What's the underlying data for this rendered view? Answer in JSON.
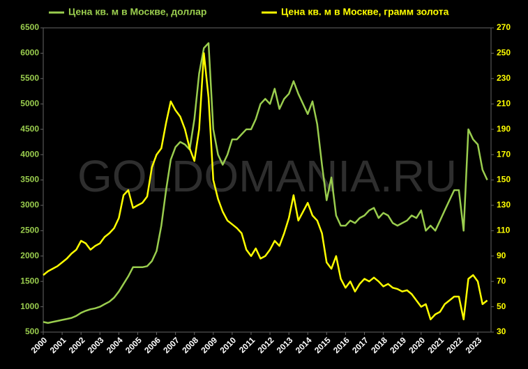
{
  "chart_data": {
    "type": "line",
    "watermark": "GOLDOMANIA.RU",
    "x": [
      2000,
      2000.25,
      2000.5,
      2000.75,
      2001,
      2001.25,
      2001.5,
      2001.75,
      2002,
      2002.25,
      2002.5,
      2002.75,
      2003,
      2003.25,
      2003.5,
      2003.75,
      2004,
      2004.25,
      2004.5,
      2004.75,
      2005,
      2005.25,
      2005.5,
      2005.75,
      2006,
      2006.25,
      2006.5,
      2006.75,
      2007,
      2007.25,
      2007.5,
      2007.75,
      2008,
      2008.25,
      2008.5,
      2008.75,
      2009,
      2009.25,
      2009.5,
      2009.75,
      2010,
      2010.25,
      2010.5,
      2010.75,
      2011,
      2011.25,
      2011.5,
      2011.75,
      2012,
      2012.25,
      2012.5,
      2012.75,
      2013,
      2013.25,
      2013.5,
      2013.75,
      2014,
      2014.25,
      2014.5,
      2014.75,
      2015,
      2015.25,
      2015.5,
      2015.75,
      2016,
      2016.25,
      2016.5,
      2016.75,
      2017,
      2017.25,
      2017.5,
      2017.75,
      2018,
      2018.25,
      2018.5,
      2018.75,
      2019,
      2019.25,
      2019.5,
      2019.75,
      2020,
      2020.25,
      2020.5,
      2020.75,
      2021,
      2021.25,
      2021.5,
      2021.75,
      2022,
      2022.25,
      2022.5,
      2022.75,
      2023,
      2023.25,
      2023.5
    ],
    "series": [
      {
        "name": "Цена кв. м в Москве, доллар",
        "color": "#9acd4e",
        "axis": "y",
        "values": [
          700,
          680,
          700,
          720,
          740,
          760,
          780,
          820,
          880,
          920,
          950,
          970,
          1000,
          1050,
          1100,
          1180,
          1300,
          1450,
          1600,
          1780,
          1780,
          1780,
          1800,
          1900,
          2100,
          2600,
          3300,
          3900,
          4150,
          4250,
          4200,
          4100,
          4700,
          5600,
          6100,
          6200,
          4500,
          4000,
          3800,
          4000,
          4300,
          4300,
          4400,
          4500,
          4500,
          4700,
          5000,
          5100,
          5000,
          5300,
          4900,
          5100,
          5200,
          5450,
          5200,
          5000,
          4800,
          5050,
          4600,
          3800,
          3100,
          3550,
          2800,
          2600,
          2600,
          2700,
          2650,
          2750,
          2800,
          2900,
          2950,
          2750,
          2850,
          2800,
          2650,
          2600,
          2650,
          2700,
          2800,
          2750,
          2900,
          2500,
          2600,
          2500,
          2700,
          2900,
          3100,
          3300,
          3300,
          2500,
          4500,
          4300,
          4200,
          3700,
          3500
        ]
      },
      {
        "name": "Цена кв. м в Москве, грамм золота",
        "color": "#ffff00",
        "axis": "y2",
        "values": [
          75,
          78,
          80,
          82,
          85,
          88,
          92,
          95,
          102,
          100,
          95,
          98,
          100,
          105,
          108,
          112,
          120,
          138,
          142,
          128,
          130,
          132,
          137,
          160,
          170,
          175,
          195,
          212,
          205,
          200,
          190,
          175,
          165,
          190,
          250,
          215,
          150,
          135,
          125,
          118,
          115,
          112,
          108,
          95,
          90,
          96,
          88,
          90,
          95,
          102,
          98,
          108,
          120,
          138,
          118,
          125,
          132,
          122,
          118,
          108,
          85,
          80,
          90,
          72,
          65,
          70,
          62,
          68,
          72,
          70,
          73,
          70,
          66,
          68,
          65,
          64,
          62,
          63,
          60,
          55,
          50,
          52,
          40,
          44,
          46,
          52,
          55,
          58,
          58,
          40,
          72,
          75,
          70,
          52,
          55
        ]
      }
    ],
    "xlim": [
      2000,
      2023.7
    ],
    "xticks": [
      2000,
      2001,
      2002,
      2003,
      2004,
      2005,
      2006,
      2007,
      2008,
      2009,
      2010,
      2011,
      2012,
      2013,
      2014,
      2015,
      2016,
      2017,
      2018,
      2019,
      2020,
      2021,
      2022,
      2023
    ],
    "ylim": [
      500,
      6500
    ],
    "yticks": [
      500,
      1000,
      1500,
      2000,
      2500,
      3000,
      3500,
      4000,
      4500,
      5000,
      5500,
      6000,
      6500
    ],
    "y2lim": [
      30,
      270
    ],
    "y2ticks": [
      30,
      50,
      70,
      90,
      110,
      130,
      150,
      170,
      190,
      210,
      230,
      250,
      270
    ],
    "grid": false
  }
}
